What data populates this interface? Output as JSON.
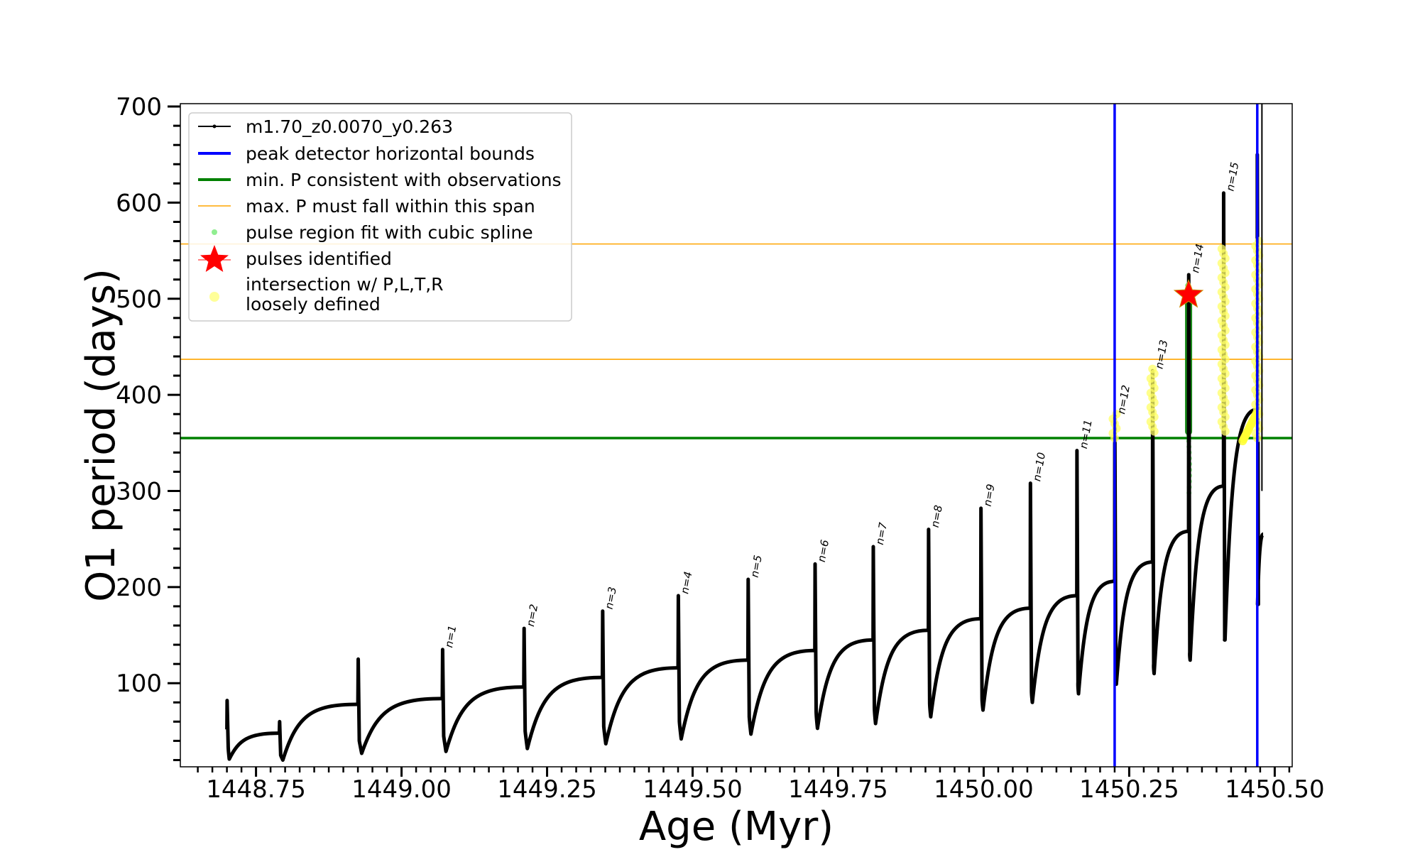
{
  "chart_data": {
    "type": "line",
    "xlabel": "Age (Myr)",
    "ylabel": "O1 period (days)",
    "xlim": [
      1448.62,
      1450.53
    ],
    "ylim": [
      13,
      703
    ],
    "x_ticks": [
      1448.75,
      1449.0,
      1449.25,
      1449.5,
      1449.75,
      1450.0,
      1450.25,
      1450.5
    ],
    "x_tick_labels": [
      "1448.75",
      "1449.00",
      "1449.25",
      "1449.50",
      "1449.75",
      "1450.00",
      "1450.25",
      "1450.50"
    ],
    "y_ticks": [
      100,
      200,
      300,
      400,
      500,
      600,
      700
    ],
    "y_tick_labels": [
      "100",
      "200",
      "300",
      "400",
      "500",
      "600",
      "700"
    ],
    "grid": false,
    "legend_position": "top-left",
    "legend": [
      {
        "label": "m1.70_z0.0070_y0.263",
        "marker": "line-dot",
        "color": "#000000"
      },
      {
        "label": "peak detector horizontal bounds",
        "marker": "line",
        "color": "#0000ff"
      },
      {
        "label": "min. P consistent with observations",
        "marker": "line",
        "color": "#008000"
      },
      {
        "label": "max. P must fall within this span",
        "marker": "thin-line",
        "color": "#ffa500"
      },
      {
        "label": "pulse region fit with cubic spline",
        "marker": "dot",
        "color": "#90ee90"
      },
      {
        "label": "pulses identified",
        "marker": "star",
        "color": "#ff0000"
      },
      {
        "label": "intersection w/ P,L,T,R",
        "label2": "loosely defined",
        "marker": "circle",
        "color": "#ffff99"
      }
    ],
    "series": [
      {
        "name": "m1.70_z0.0070_y0.263",
        "color": "#000000",
        "pulses": [
          {
            "x0": 1448.7,
            "x1": 1448.79,
            "p_start": 52,
            "p_peak": 82,
            "p_post": 35,
            "p_min": 21,
            "p_end": 48,
            "label": ""
          },
          {
            "x0": 1448.79,
            "x1": 1448.925,
            "p_start": 48,
            "p_peak": 60,
            "p_post": 25,
            "p_min": 20,
            "p_end": 78,
            "label": ""
          },
          {
            "x0": 1448.925,
            "x1": 1449.07,
            "p_start": 78,
            "p_peak": 125,
            "p_post": 40,
            "p_min": 27,
            "p_end": 84,
            "label": ""
          },
          {
            "x0": 1449.07,
            "x1": 1449.21,
            "p_start": 84,
            "p_peak": 135,
            "p_post": 45,
            "p_min": 29,
            "p_end": 96,
            "label": "n=1"
          },
          {
            "x0": 1449.21,
            "x1": 1449.345,
            "p_start": 96,
            "p_peak": 157,
            "p_post": 50,
            "p_min": 32,
            "p_end": 106,
            "label": "n=2"
          },
          {
            "x0": 1449.345,
            "x1": 1449.475,
            "p_start": 106,
            "p_peak": 175,
            "p_post": 55,
            "p_min": 37,
            "p_end": 116,
            "label": "n=3"
          },
          {
            "x0": 1449.475,
            "x1": 1449.595,
            "p_start": 116,
            "p_peak": 191,
            "p_post": 60,
            "p_min": 42,
            "p_end": 124,
            "label": "n=4"
          },
          {
            "x0": 1449.595,
            "x1": 1449.71,
            "p_start": 124,
            "p_peak": 208,
            "p_post": 65,
            "p_min": 47,
            "p_end": 134,
            "label": "n=5"
          },
          {
            "x0": 1449.71,
            "x1": 1449.81,
            "p_start": 134,
            "p_peak": 224,
            "p_post": 70,
            "p_min": 53,
            "p_end": 145,
            "label": "n=6"
          },
          {
            "x0": 1449.81,
            "x1": 1449.905,
            "p_start": 145,
            "p_peak": 242,
            "p_post": 75,
            "p_min": 58,
            "p_end": 155,
            "label": "n=7"
          },
          {
            "x0": 1449.905,
            "x1": 1449.995,
            "p_start": 155,
            "p_peak": 260,
            "p_post": 80,
            "p_min": 65,
            "p_end": 167,
            "label": "n=8"
          },
          {
            "x0": 1449.995,
            "x1": 1450.08,
            "p_start": 167,
            "p_peak": 282,
            "p_post": 85,
            "p_min": 72,
            "p_end": 178,
            "label": "n=9"
          },
          {
            "x0": 1450.08,
            "x1": 1450.16,
            "p_start": 178,
            "p_peak": 308,
            "p_post": 93,
            "p_min": 80,
            "p_end": 191,
            "label": "n=10"
          },
          {
            "x0": 1450.16,
            "x1": 1450.225,
            "p_start": 191,
            "p_peak": 342,
            "p_post": 101,
            "p_min": 89,
            "p_end": 206,
            "label": "n=11"
          },
          {
            "x0": 1450.225,
            "x1": 1450.29,
            "p_start": 206,
            "p_peak": 378,
            "p_post": 110,
            "p_min": 99,
            "p_end": 226,
            "label": "n=12"
          },
          {
            "x0": 1450.29,
            "x1": 1450.352,
            "p_start": 226,
            "p_peak": 425,
            "p_post": 120,
            "p_min": 110,
            "p_end": 258,
            "label": "n=13"
          },
          {
            "x0": 1450.352,
            "x1": 1450.412,
            "p_start": 258,
            "p_peak": 525,
            "p_post": 132,
            "p_min": 124,
            "p_end": 305,
            "label": "n=14"
          },
          {
            "x0": 1450.412,
            "x1": 1450.47,
            "p_start": 305,
            "p_peak": 610,
            "p_post": 145,
            "p_min": 145,
            "p_end": 385,
            "label": "n=15"
          },
          {
            "x0": 1450.47,
            "x1": 1450.48,
            "p_start": 385,
            "p_peak": 650,
            "p_post": 182,
            "p_min": 182,
            "p_end": 255,
            "label": ""
          }
        ]
      }
    ],
    "hlines": [
      {
        "name": "min. P consistent with observations",
        "y": 355,
        "color": "#008000"
      },
      {
        "name": "max. P must fall within this span",
        "y": 437,
        "color": "#ffa500"
      },
      {
        "name": "max. P must fall within this span",
        "y": 557,
        "color": "#ffa500"
      }
    ],
    "vlines": [
      {
        "name": "peak detector horizontal bounds",
        "x": 1450.225,
        "color": "#0000ff"
      },
      {
        "name": "peak detector horizontal bounds",
        "x": 1450.47,
        "color": "#0000ff"
      }
    ],
    "spline_fit": {
      "name": "pulse region fit with cubic spline",
      "x": 1450.352,
      "y_min": 298,
      "y_max": 515,
      "color": "#90ee90"
    },
    "pulses_identified": [
      {
        "name": "pulses identified",
        "x": 1450.352,
        "y": 504,
        "color": "#ff0000"
      }
    ],
    "intersections": [
      {
        "name": "loosely defined",
        "x": 1450.225,
        "y_min": 355,
        "y_max": 382
      },
      {
        "name": "loosely defined",
        "x": 1450.29,
        "y_min": 362,
        "y_max": 430
      },
      {
        "name": "loosely defined",
        "x": 1450.412,
        "y_min": 362,
        "y_max": 555
      },
      {
        "name": "loosely defined",
        "x": 1450.47,
        "y_min": 355,
        "y_max": 560
      }
    ]
  }
}
